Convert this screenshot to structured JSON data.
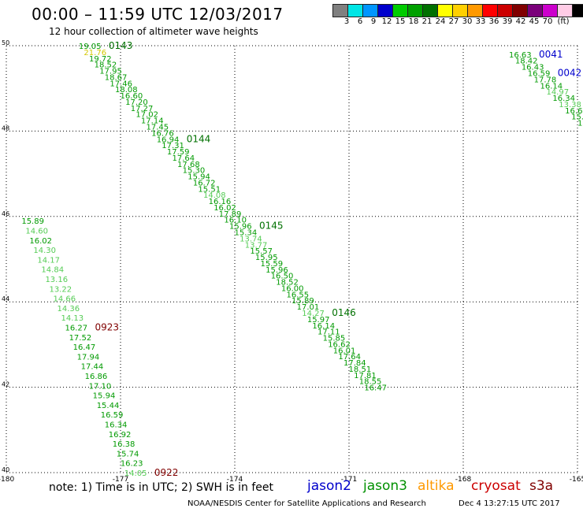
{
  "header": {
    "title": "00:00 – 11:59 UTC 12/03/2017",
    "subtitle": "12 hour collection of altimeter wave heights"
  },
  "scale": {
    "colors": [
      "#808080",
      "#00e5e5",
      "#0096ff",
      "#0000cc",
      "#00cc00",
      "#00a000",
      "#007000",
      "#ffff00",
      "#ffd000",
      "#ff9900",
      "#ff0000",
      "#cc0000",
      "#800000",
      "#7a007a",
      "#cc00cc",
      "#ffcce6",
      "#000000"
    ],
    "labels": [
      "3",
      "6",
      "9",
      "12",
      "15",
      "18",
      "21",
      "24",
      "27",
      "30",
      "33",
      "36",
      "39",
      "42",
      "45",
      "70"
    ],
    "unit": "(ft)"
  },
  "chart_data": {
    "type": "scatter",
    "title": "00:00 – 11:59 UTC 12/03/2017",
    "subtitle": "12 hour collection of altimeter wave heights",
    "xlim": [
      -180,
      -165
    ],
    "ylim": [
      40,
      50
    ],
    "x_ticks": [
      "-180",
      "-177",
      "-174",
      "-171",
      "-168",
      "-165"
    ],
    "y_ticks": [
      "40",
      "42",
      "44",
      "46",
      "48",
      "50"
    ],
    "grid": true,
    "series": [
      {
        "name": "jason3",
        "passes": [
          {
            "time": "0143",
            "lon_start": -178.1,
            "lat_start": 50.0,
            "lon_end": -170.6,
            "lat_end": 42.0
          },
          {
            "time": "0923",
            "lon_start": -179.6,
            "lat_start": 45.9,
            "lon_end": -176.9,
            "lat_end": 40.0
          },
          {
            "time": "0041",
            "lon_start": -166.8,
            "lat_start": 49.8,
            "lon_end": -165.0,
            "lat_end": 48.2
          }
        ],
        "tracks": [
          {
            "label_time": "0143",
            "values": [
              "19.05",
              "21.76",
              "19.72",
              "18.52",
              "17.95",
              "18.67",
              "17.46",
              "18.08",
              "16.60",
              "17.20",
              "17.27",
              "17.02",
              "17.14",
              "17.45",
              "16.76",
              "16.94",
              "17.31",
              "17.59",
              "17.64",
              "17.68",
              "15.30",
              "15.94",
              "16.72",
              "15.51",
              "14.08",
              "16.16",
              "16.02",
              "17.89",
              "16.10",
              "15.96",
              "15.34",
              "13.74",
              "13.77",
              "15.57",
              "15.95",
              "15.59",
              "15.96",
              "16.50",
              "18.52",
              "16.00",
              "16.55",
              "15.89",
              "17.01",
              "14.27",
              "15.97",
              "16.14",
              "17.11",
              "15.85",
              "16.62",
              "16.01",
              "17.64",
              "17.84",
              "18.51",
              "17.81",
              "18.55",
              "16.47"
            ],
            "tags": [
              {
                "text": "0143",
                "after": 0
              },
              {
                "text": "0144",
                "after": 15
              },
              {
                "text": "0145",
                "after": 29
              },
              {
                "text": "0146",
                "after": 43
              }
            ]
          },
          {
            "label_time": "0923",
            "values": [
              "15.89",
              "14.60",
              "16.02",
              "14.30",
              "14.17",
              "14.84",
              "13.16",
              "13.22",
              "14.66",
              "14.36",
              "14.13",
              "16.27",
              "17.52",
              "16.47",
              "17.94",
              "17.44",
              "16.86",
              "17.10",
              "15.94",
              "15.44",
              "16.59",
              "16.34",
              "16.92",
              "16.38",
              "15.74",
              "16.23",
              "14.05"
            ],
            "tags": [
              {
                "text": "0923",
                "after": 11
              },
              {
                "text": "0922",
                "after": 26
              }
            ]
          },
          {
            "label_time": "0041",
            "values": [
              "16.63",
              "18.42",
              "16.43",
              "16.59",
              "17.78",
              "16.14",
              "14.97",
              "16.34",
              "13.38",
              "16.65",
              "15.6",
              "15"
            ],
            "tags": [
              {
                "text": "0041",
                "after": 0
              },
              {
                "text": "0042",
                "after": 3
              }
            ]
          }
        ]
      }
    ]
  },
  "legend": {
    "note": "note: 1) Time is in UTC; 2) SWH is in feet",
    "satellites": [
      {
        "name": "jason2",
        "color": "#0000cc"
      },
      {
        "name": "jason3",
        "color": "#009000"
      },
      {
        "name": "altika",
        "color": "#ff9900"
      },
      {
        "name": "cryosat",
        "color": "#cc0000"
      },
      {
        "name": "s3a",
        "color": "#800000"
      }
    ]
  },
  "footer": {
    "credit": "NOAA/NESDIS Center for Satellite Applications and Research",
    "timestamp": "Dec  4 13:27:15 UTC 2017"
  }
}
